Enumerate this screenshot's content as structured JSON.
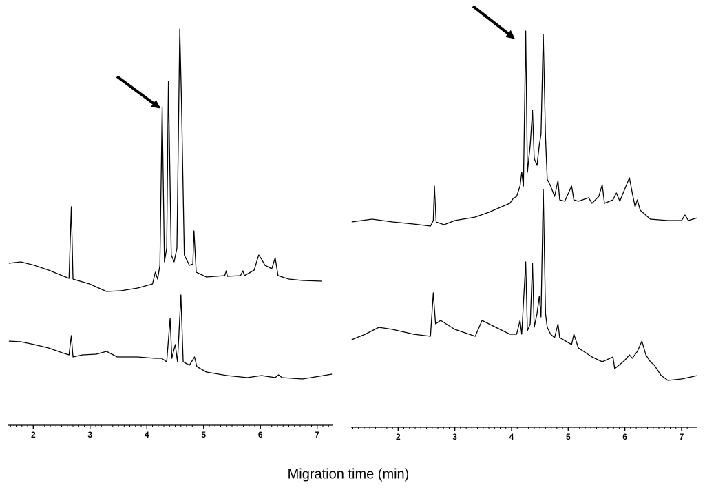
{
  "xlabel": "Migration time (min)",
  "chart_data": [
    {
      "type": "line",
      "xlim": [
        1.56,
        7.27
      ],
      "ylim": [
        0,
        580
      ],
      "xticks": [
        2,
        3,
        4,
        5,
        6,
        7
      ],
      "minor_tick_step": 0.1,
      "series": [
        {
          "color": "#000000",
          "x": [
            1.57,
            1.78,
            2.02,
            2.27,
            2.51,
            2.63,
            2.67,
            2.7,
            2.99,
            3.29,
            3.54,
            3.84,
            4.1,
            4.15,
            4.19,
            4.23,
            4.27,
            4.31,
            4.35,
            4.38,
            4.43,
            4.48,
            4.53,
            4.58,
            4.61,
            4.66,
            4.75,
            4.81,
            4.83,
            4.87,
            5.05,
            5.37,
            5.4,
            5.42,
            5.65,
            5.69,
            5.72,
            5.89,
            5.97,
            6.02,
            6.08,
            6.2,
            6.26,
            6.31,
            6.5,
            6.74,
            7.08
          ],
          "values": [
            218,
            220,
            215,
            208,
            200,
            196,
            300,
            195,
            188,
            177,
            178,
            182,
            188,
            205,
            195,
            215,
            445,
            220,
            240,
            482,
            230,
            220,
            240,
            558,
            455,
            230,
            215,
            217,
            265,
            205,
            198,
            200,
            207,
            199,
            200,
            207,
            200,
            208,
            230,
            224,
            215,
            210,
            226,
            200,
            195,
            193,
            192
          ]
        },
        {
          "color": "#000000",
          "x": [
            1.57,
            1.78,
            2.02,
            2.27,
            2.51,
            2.63,
            2.67,
            2.7,
            2.87,
            3.11,
            3.29,
            3.48,
            3.84,
            4.14,
            4.26,
            4.35,
            4.41,
            4.44,
            4.5,
            4.54,
            4.6,
            4.64,
            4.75,
            4.84,
            4.88,
            5.05,
            5.41,
            5.77,
            6.02,
            6.26,
            6.32,
            6.38,
            6.74,
            7.26
          ],
          "values": [
            105,
            104,
            100,
            95,
            88,
            85,
            113,
            82,
            85,
            86,
            90,
            82,
            82,
            80,
            80,
            75,
            138,
            80,
            100,
            75,
            172,
            75,
            70,
            82,
            68,
            60,
            55,
            52,
            55,
            52,
            56,
            52,
            50,
            57
          ]
        }
      ]
    },
    {
      "type": "line",
      "xlim": [
        1.17,
        7.28
      ],
      "ylim": [
        0,
        580
      ],
      "xticks": [
        2,
        3,
        4,
        5,
        6,
        7
      ],
      "minor_tick_step": 0.1,
      "series": [
        {
          "color": "#000000",
          "x": [
            1.18,
            1.54,
            1.9,
            2.27,
            2.57,
            2.62,
            2.64,
            2.67,
            2.81,
            3.0,
            3.36,
            3.6,
            3.97,
            4.03,
            4.09,
            4.15,
            4.18,
            4.21,
            4.25,
            4.28,
            4.33,
            4.37,
            4.4,
            4.45,
            4.49,
            4.52,
            4.56,
            4.6,
            4.63,
            4.69,
            4.76,
            4.82,
            4.85,
            4.94,
            5.06,
            5.1,
            5.18,
            5.36,
            5.42,
            5.54,
            5.6,
            5.64,
            5.79,
            5.85,
            5.91,
            5.97,
            6.03,
            6.08,
            6.13,
            6.18,
            6.22,
            6.27,
            6.45,
            6.76,
            7.0,
            7.06,
            7.12,
            7.28
          ],
          "values": [
            278,
            282,
            278,
            275,
            272,
            280,
            330,
            278,
            274,
            280,
            285,
            292,
            305,
            312,
            315,
            330,
            350,
            330,
            555,
            350,
            390,
            440,
            370,
            360,
            390,
            405,
            550,
            400,
            340,
            330,
            315,
            338,
            310,
            308,
            330,
            310,
            308,
            313,
            305,
            315,
            332,
            305,
            310,
            320,
            308,
            320,
            332,
            342,
            320,
            300,
            310,
            295,
            282,
            280,
            280,
            288,
            280,
            284
          ]
        },
        {
          "color": "#000000",
          "x": [
            1.18,
            1.42,
            1.66,
            1.9,
            2.27,
            2.57,
            2.62,
            2.66,
            2.75,
            3.0,
            3.36,
            3.48,
            3.6,
            3.97,
            4.09,
            4.15,
            4.18,
            4.25,
            4.28,
            4.33,
            4.37,
            4.4,
            4.45,
            4.49,
            4.52,
            4.56,
            4.6,
            4.63,
            4.69,
            4.76,
            4.82,
            4.85,
            5.06,
            5.1,
            5.18,
            5.42,
            5.6,
            5.79,
            5.82,
            5.97,
            6.03,
            6.08,
            6.13,
            6.22,
            6.3,
            6.37,
            6.45,
            6.52,
            6.64,
            6.76,
            7.0,
            7.28
          ],
          "values": [
            107,
            115,
            125,
            122,
            115,
            112,
            175,
            130,
            135,
            122,
            112,
            135,
            130,
            115,
            115,
            135,
            115,
            220,
            120,
            130,
            218,
            125,
            145,
            170,
            140,
            325,
            145,
            125,
            115,
            110,
            130,
            110,
            100,
            115,
            95,
            82,
            75,
            82,
            65,
            75,
            80,
            85,
            80,
            90,
            105,
            85,
            75,
            70,
            55,
            48,
            50,
            55
          ]
        }
      ]
    }
  ]
}
